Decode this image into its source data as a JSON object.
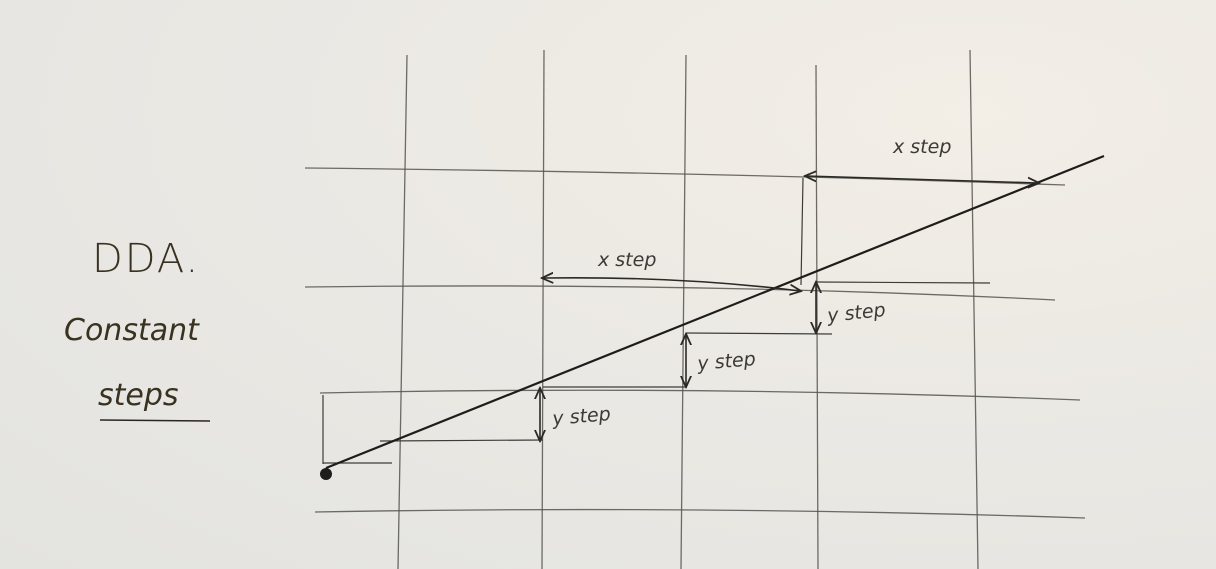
{
  "diagram": {
    "title": "DDA.",
    "subtitle_line1": "Constant",
    "subtitle_line2": "steps",
    "labels": {
      "x_step_top": "x step",
      "x_step_mid": "x step",
      "y_step_right": "y step",
      "y_step_mid": "y step",
      "y_step_left": "y step"
    }
  }
}
